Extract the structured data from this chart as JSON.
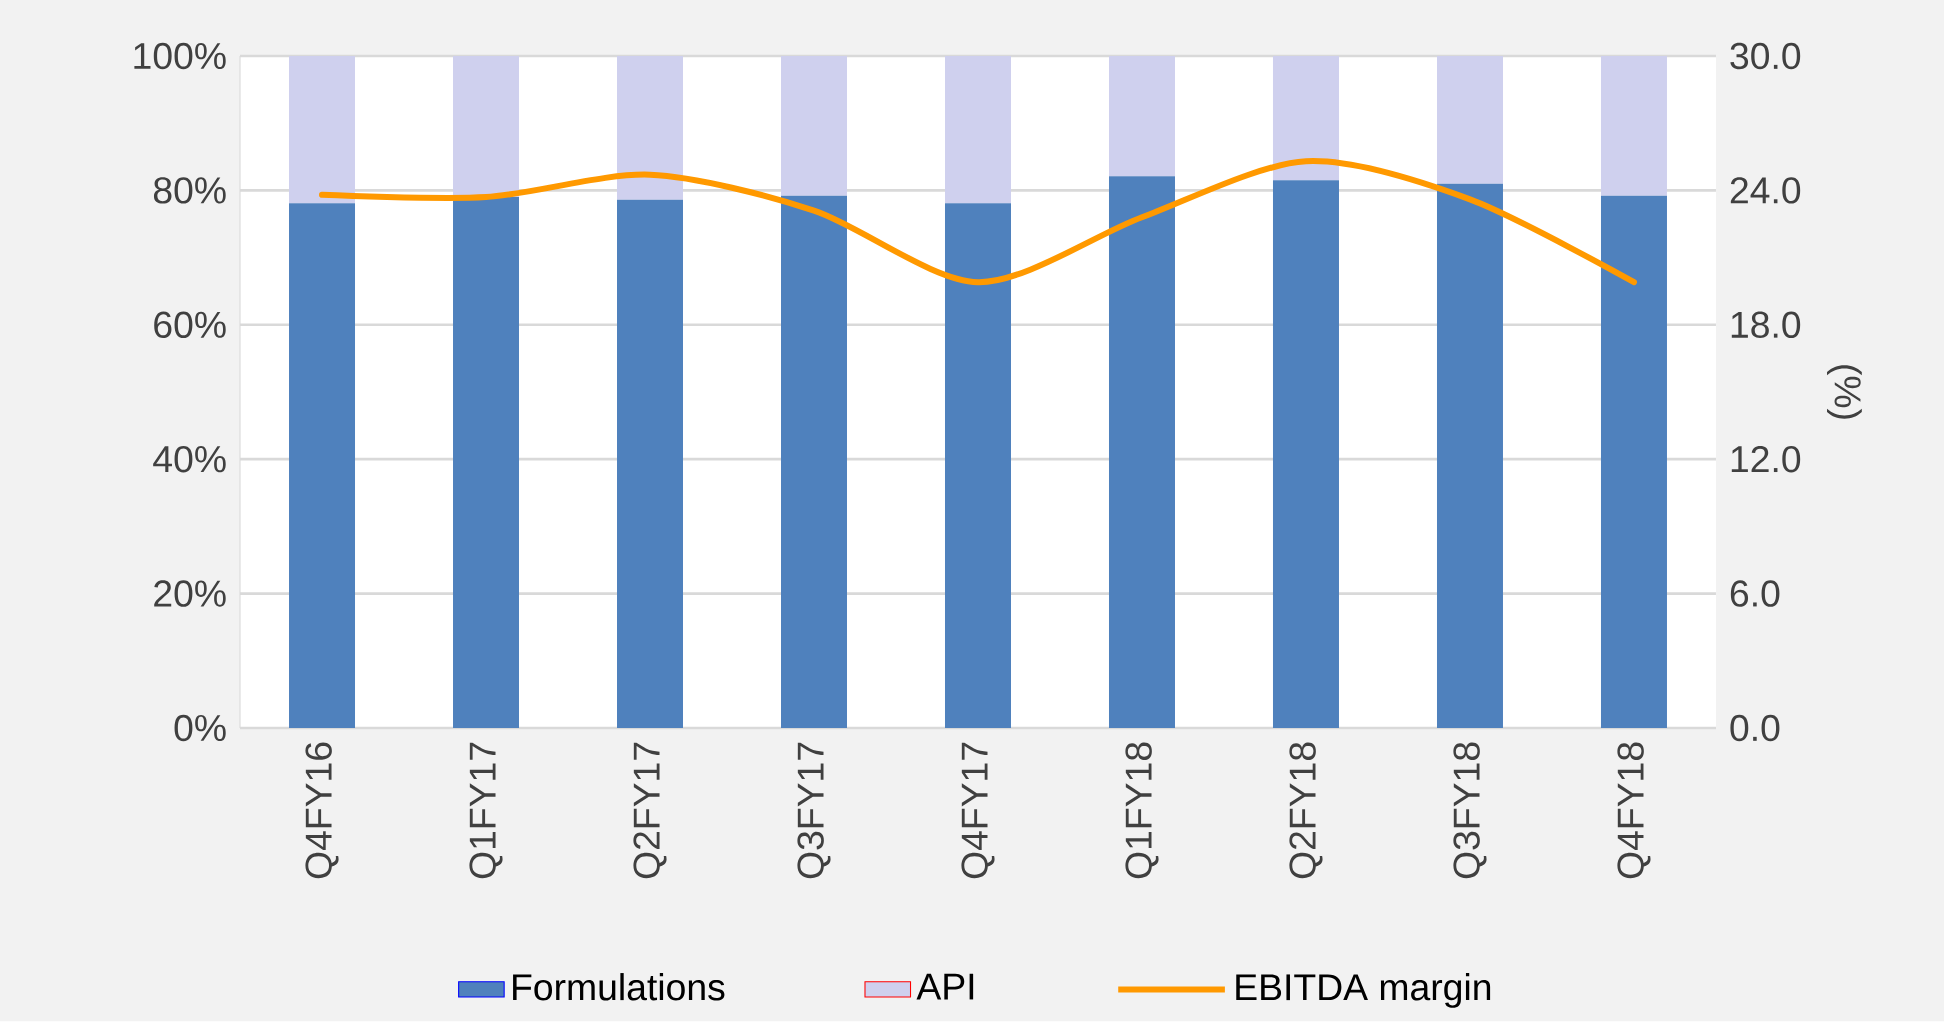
{
  "chart_data": {
    "type": "bar",
    "stacked": true,
    "categories": [
      "Q4FY16",
      "Q1FY17",
      "Q2FY17",
      "Q3FY17",
      "Q4FY17",
      "Q1FY18",
      "Q2FY18",
      "Q3FY18",
      "Q4FY18"
    ],
    "series": [
      {
        "name": "Formulations",
        "color": "#4f81bd",
        "values": [
          78.1,
          79,
          78.6,
          79.2,
          78.1,
          82.1,
          81.5,
          81,
          79.2
        ]
      },
      {
        "name": "API",
        "color": "#cfd0ee",
        "values": [
          21.9,
          21,
          21.4,
          20.8,
          21.9,
          17.9,
          18.5,
          19,
          20.8
        ]
      },
      {
        "name": "EBITDA margin",
        "type": "line",
        "axis": "y2",
        "color": "#ff9900",
        "values": [
          23.8,
          23.7,
          24.7,
          23.1,
          19.9,
          22.8,
          25.3,
          23.6,
          19.9
        ]
      }
    ],
    "ylim": [
      0,
      100
    ],
    "yticks": [
      {
        "value": 0,
        "label": "0%"
      },
      {
        "value": 20,
        "label": "20%"
      },
      {
        "value": 40,
        "label": "40%"
      },
      {
        "value": 60,
        "label": "60%"
      },
      {
        "value": 80,
        "label": "80%"
      },
      {
        "value": 100,
        "label": "100%"
      }
    ],
    "y2lim": [
      0,
      30
    ],
    "y2ticks": [
      {
        "value": 0,
        "label": "0.0"
      },
      {
        "value": 6,
        "label": "6.0"
      },
      {
        "value": 12,
        "label": "12.0"
      },
      {
        "value": 18,
        "label": "18.0"
      },
      {
        "value": 24,
        "label": "24.0"
      },
      {
        "value": 30,
        "label": "30.0"
      }
    ],
    "y2label": "(%)",
    "grid": "y",
    "legend": "bottom",
    "marker": "none",
    "line_style": "solid"
  }
}
